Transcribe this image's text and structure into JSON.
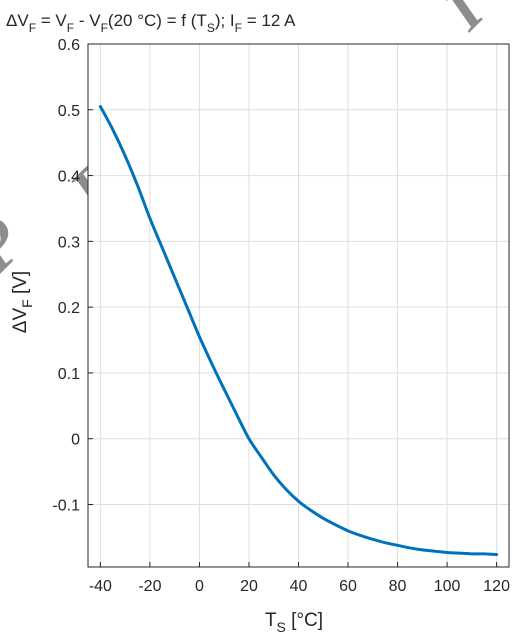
{
  "chart_data": {
    "type": "line",
    "title": {
      "p1": "ΔV",
      "p2": "F",
      "p3": " = V",
      "p4": "F",
      "p5": " - V",
      "p6": "F",
      "p7": "(20 °C) = f (T",
      "p8": "S",
      "p9": "); I",
      "p10": "F",
      "p11": " = 12 A"
    },
    "xlabel": {
      "main": "T",
      "sub": "S",
      "rest": " [°C]"
    },
    "ylabel": {
      "main": "ΔV",
      "sub": "F",
      "rest": " [V]"
    },
    "xlim": [
      -45,
      125
    ],
    "ylim": [
      -0.195,
      0.6
    ],
    "xticks": [
      -40,
      -20,
      0,
      20,
      40,
      60,
      80,
      100,
      120
    ],
    "xtick_labels": [
      "-40",
      "-20",
      "0",
      "20",
      "40",
      "60",
      "80",
      "100",
      "120"
    ],
    "yticks": [
      -0.1,
      0,
      0.1,
      0.2,
      0.3,
      0.4,
      0.5,
      0.6
    ],
    "ytick_labels": [
      "-0.1",
      "0",
      "0.1",
      "0.2",
      "0.3",
      "0.4",
      "0.5",
      "0.6"
    ],
    "grid": true,
    "series": [
      {
        "color": "#0072bd",
        "x": [
          -40,
          -35,
          -30,
          -25,
          -20,
          -15,
          -10,
          -5,
          0,
          5,
          10,
          15,
          20,
          25,
          30,
          35,
          40,
          45,
          50,
          55,
          60,
          65,
          70,
          75,
          80,
          85,
          90,
          95,
          100,
          105,
          110,
          115,
          120
        ],
        "y": [
          0.505,
          0.47,
          0.43,
          0.385,
          0.335,
          0.29,
          0.245,
          0.2,
          0.155,
          0.114,
          0.075,
          0.037,
          0.0,
          -0.028,
          -0.055,
          -0.077,
          -0.095,
          -0.109,
          -0.121,
          -0.131,
          -0.14,
          -0.147,
          -0.153,
          -0.158,
          -0.162,
          -0.166,
          -0.169,
          -0.171,
          -0.173,
          -0.174,
          -0.175,
          -0.175,
          -0.176
        ]
      }
    ],
    "watermark": [
      "P",
      "R",
      "E",
      "L",
      "I"
    ]
  }
}
